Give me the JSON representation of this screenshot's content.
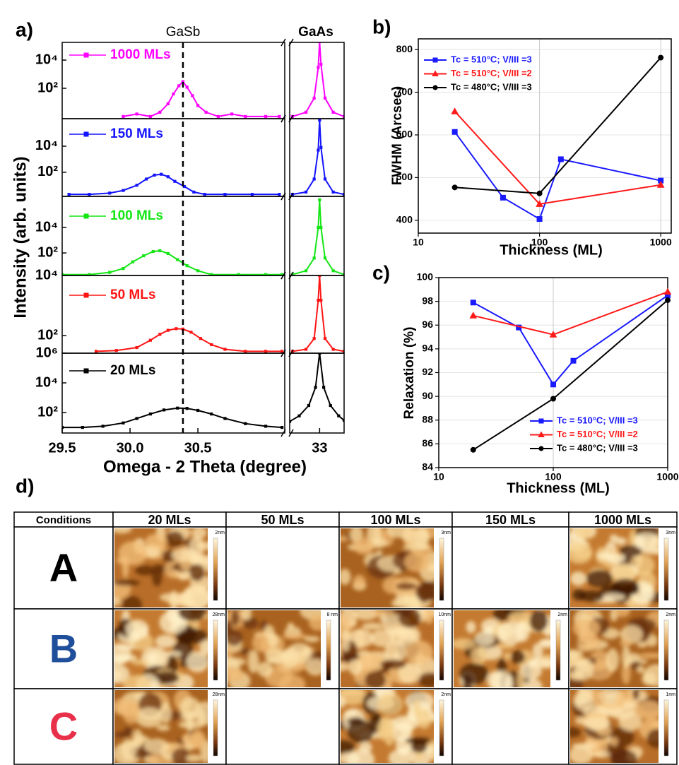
{
  "chart_data": [
    {
      "type": "ridgeline",
      "label": "a)",
      "x_label": "Omega - 2 Theta (degree)",
      "y_label": "Intensity (arb. units)",
      "annotations": [
        "GaSb",
        "GaAs"
      ],
      "log_y": true,
      "xlim": [
        29.5,
        33.18
      ],
      "xbreak": [
        31.14,
        32.78
      ],
      "vline": 30.39,
      "xticks": [
        29.5,
        {
          "value": 30,
          "label": "30.0"
        },
        30.5,
        33
      ],
      "series": [
        {
          "name": "1000 MLs",
          "color": "#ff00ff",
          "marker": "square",
          "ylim": [
            0.7,
            180000
          ],
          "yticks": [
            {
              "value": 100,
              "label": "10²"
            },
            {
              "value": 10000,
              "label": "10⁴"
            }
          ],
          "x": [
            29.95,
            30.05,
            30.15,
            30.22,
            30.28,
            30.32,
            30.36,
            30.39,
            30.42,
            30.46,
            30.5,
            30.56,
            30.65,
            30.75,
            30.85,
            31.0,
            31.1,
            32.8,
            32.9,
            32.96,
            32.99,
            33.0,
            33.01,
            33.04,
            33.1,
            33.18
          ],
          "values": [
            1,
            1.5,
            1,
            2,
            8,
            40,
            150,
            300,
            120,
            30,
            6,
            2,
            1,
            1.5,
            1,
            1,
            1,
            1,
            2,
            20,
            3000,
            200000,
            5000,
            20,
            2,
            1
          ]
        },
        {
          "name": "150 MLs",
          "color": "#1414ff",
          "marker": "square",
          "ylim": [
            1.4,
            1300000
          ],
          "yticks": [
            {
              "value": 100,
              "label": "10²"
            },
            {
              "value": 10000,
              "label": "10⁴"
            }
          ],
          "x": [
            29.55,
            29.7,
            29.85,
            29.95,
            30.05,
            30.12,
            30.18,
            30.23,
            30.28,
            30.33,
            30.4,
            30.47,
            30.55,
            30.7,
            30.9,
            31.1,
            32.8,
            32.9,
            32.96,
            32.99,
            33.0,
            33.01,
            33.04,
            33.1,
            33.18
          ],
          "values": [
            2,
            2,
            2.5,
            4,
            10,
            30,
            60,
            70,
            45,
            20,
            8,
            3,
            2,
            2,
            2,
            2,
            2,
            3,
            30,
            5000,
            1000000,
            8000,
            30,
            3,
            2
          ]
        },
        {
          "name": "100 MLs",
          "color": "#14e614",
          "marker": "square",
          "ylim": [
            1.7,
            2800000
          ],
          "yticks": [
            {
              "value": 100,
              "label": "10²"
            },
            {
              "value": 10000,
              "label": "10⁴"
            }
          ],
          "x": [
            29.5,
            29.7,
            29.85,
            29.95,
            30.02,
            30.1,
            30.17,
            30.22,
            30.28,
            30.35,
            30.42,
            30.5,
            30.6,
            30.8,
            31.0,
            31.12,
            32.8,
            32.9,
            32.96,
            32.99,
            33.0,
            33.01,
            33.04,
            33.1,
            33.18
          ],
          "values": [
            2,
            2,
            3,
            6,
            20,
            60,
            130,
            150,
            90,
            30,
            10,
            4,
            2,
            2,
            2,
            2,
            2,
            4,
            40,
            10000,
            1500000,
            10000,
            40,
            4,
            2
          ]
        },
        {
          "name": "50 MLs",
          "color": "#ff1414",
          "marker": "square",
          "ylim": [
            26,
            10000
          ],
          "yticks": [
            {
              "value": 100,
              "label": "10²"
            },
            {
              "value": 10000,
              "label": "10⁴"
            }
          ],
          "x": [
            29.75,
            29.9,
            30.05,
            30.15,
            30.22,
            30.28,
            30.34,
            30.39,
            30.45,
            30.52,
            30.6,
            30.7,
            30.85,
            31.0,
            31.12,
            32.8,
            32.9,
            32.96,
            32.99,
            33.0,
            33.01,
            33.04,
            33.1,
            33.18
          ],
          "values": [
            30,
            32,
            40,
            70,
            110,
            150,
            170,
            165,
            130,
            80,
            50,
            35,
            30,
            30,
            30,
            30,
            35,
            80,
            1500,
            10000,
            1500,
            80,
            35,
            30
          ]
        },
        {
          "name": "20 MLs",
          "color": "#000000",
          "marker": "square",
          "ylim": [
            4.2,
            1000000
          ],
          "yticks": [
            {
              "value": 100,
              "label": "10²"
            },
            {
              "value": 10000,
              "label": "10⁴"
            },
            {
              "value": 1000000,
              "label": "10⁶"
            }
          ],
          "x": [
            29.5,
            29.65,
            29.8,
            29.95,
            30.05,
            30.15,
            30.25,
            30.35,
            30.42,
            30.5,
            30.6,
            30.7,
            30.85,
            31.0,
            31.12,
            32.78,
            32.85,
            32.92,
            32.97,
            33.0,
            33.03,
            33.08,
            33.14,
            33.18
          ],
          "values": [
            10,
            10,
            12,
            20,
            40,
            80,
            150,
            200,
            190,
            140,
            80,
            40,
            18,
            12,
            10,
            25,
            60,
            300,
            5000,
            1000000,
            5000,
            300,
            60,
            30
          ]
        }
      ]
    },
    {
      "type": "line",
      "label": "b)",
      "x_label": "Thickness (ML)",
      "y_label": "FWHM (Arcsec)",
      "log_x": true,
      "grid": true,
      "legend": "upper left",
      "xlim": [
        10,
        1220
      ],
      "xticks": [
        10,
        100,
        1000
      ],
      "ylim": [
        370,
        825
      ],
      "yticks": [
        400,
        500,
        600,
        700,
        800
      ],
      "series": [
        {
          "name": "Tc = 510°C; V/III =3",
          "color": "#1a1aff",
          "marker": "square",
          "x": [
            20,
            50,
            100,
            150,
            1000
          ],
          "values": [
            607,
            453,
            403,
            543,
            493
          ]
        },
        {
          "name": "Tc = 510°C; V/III =2",
          "color": "#ff1a1a",
          "marker": "triangle",
          "x": [
            20,
            100,
            1000
          ],
          "values": [
            655,
            438,
            483
          ]
        },
        {
          "name": "Tc = 480°C; V/III =3",
          "color": "#000000",
          "marker": "circle",
          "x": [
            20,
            100,
            1000
          ],
          "values": [
            477,
            463,
            781
          ]
        }
      ]
    },
    {
      "type": "line",
      "label": "c)",
      "x_label": "Thickness (ML)",
      "y_label": "Relaxation (%)",
      "log_x": true,
      "grid": true,
      "legend": "lower right",
      "xlim": [
        10,
        1000
      ],
      "xticks": [
        10,
        100,
        1000
      ],
      "ylim": [
        84,
        100
      ],
      "yticks": [
        84,
        86,
        88,
        90,
        92,
        94,
        96,
        98,
        100
      ],
      "series": [
        {
          "name": "Tc = 510°C; V/III =3",
          "color": "#1a1aff",
          "marker": "square",
          "x": [
            20,
            50,
            100,
            150,
            1000
          ],
          "values": [
            97.9,
            95.8,
            91.0,
            93.0,
            98.5
          ]
        },
        {
          "name": "Tc = 510°C; V/III =2",
          "color": "#ff1a1a",
          "marker": "triangle",
          "x": [
            20,
            100,
            1000
          ],
          "values": [
            96.8,
            95.2,
            98.8
          ]
        },
        {
          "name": "Tc = 480°C; V/III =3",
          "color": "#000000",
          "marker": "circle",
          "x": [
            20,
            100,
            1000
          ],
          "values": [
            85.5,
            89.8,
            98.1
          ]
        }
      ]
    }
  ],
  "table": {
    "label": "d)",
    "header": [
      "Conditions",
      "20 MLs",
      "50 MLs",
      "100 MLs",
      "150 MLs",
      "1000 MLs"
    ],
    "rows": [
      {
        "condition": "A",
        "color": "#000000",
        "scales": [
          "2nm",
          null,
          "3nm",
          null,
          "3nm"
        ]
      },
      {
        "condition": "B",
        "color": "#1f4e9a",
        "scales": [
          "28nm",
          "8 nm",
          "10nm",
          "2nm",
          "2nm"
        ]
      },
      {
        "condition": "C",
        "color": "#e8304a",
        "scales": [
          "28nm",
          null,
          "2nm",
          null,
          "1nm"
        ]
      }
    ]
  }
}
